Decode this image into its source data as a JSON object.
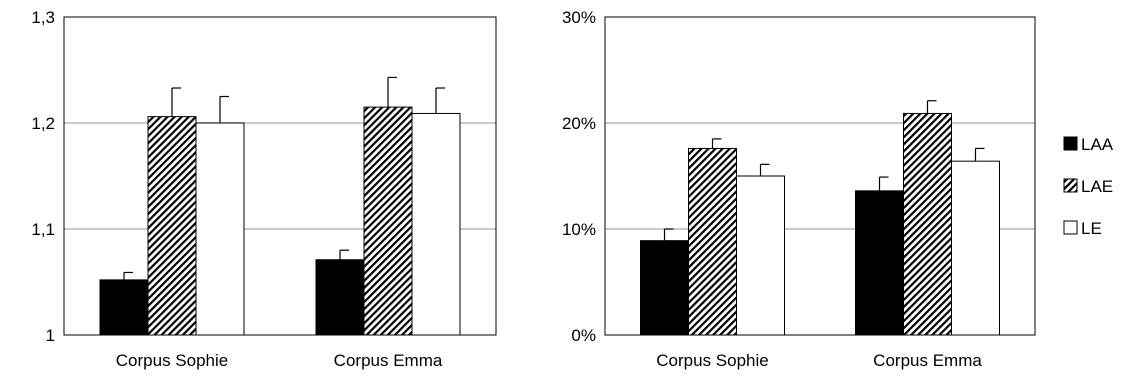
{
  "chart_data": [
    {
      "type": "bar",
      "title": "",
      "xlabel": "",
      "ylabel": "",
      "categories": [
        "Corpus Sophie",
        "Corpus Emma"
      ],
      "ylim": [
        1,
        1.3
      ],
      "yticks": [
        1,
        1.1,
        1.2,
        1.3
      ],
      "ytick_labels": [
        "1",
        "1,1",
        "1,2",
        "1,3"
      ],
      "grid": true,
      "series": [
        {
          "name": "LAA",
          "values": [
            1.052,
            1.071
          ],
          "errors": [
            0.007,
            0.009
          ]
        },
        {
          "name": "LAE",
          "values": [
            1.206,
            1.215
          ],
          "errors": [
            0.027,
            0.028
          ]
        },
        {
          "name": "LE",
          "values": [
            1.2,
            1.209
          ],
          "errors": [
            0.025,
            0.024
          ]
        }
      ]
    },
    {
      "type": "bar",
      "title": "",
      "xlabel": "",
      "ylabel": "",
      "categories": [
        "Corpus Sophie",
        "Corpus Emma"
      ],
      "ylim": [
        0,
        0.3
      ],
      "yticks": [
        0,
        0.1,
        0.2,
        0.3
      ],
      "ytick_labels": [
        "0%",
        "10%",
        "20%",
        "30%"
      ],
      "grid": true,
      "legend": "right",
      "series": [
        {
          "name": "LAA",
          "values": [
            0.089,
            0.136
          ],
          "errors": [
            0.011,
            0.013
          ]
        },
        {
          "name": "LAE",
          "values": [
            0.176,
            0.209
          ],
          "errors": [
            0.009,
            0.012
          ]
        },
        {
          "name": "LE",
          "values": [
            0.15,
            0.164
          ],
          "errors": [
            0.011,
            0.012
          ]
        }
      ]
    }
  ],
  "series_styles": {
    "LAA": {
      "fill": "#000000"
    },
    "LAE": {
      "fill": "hatch"
    },
    "LE": {
      "fill": "#ffffff"
    }
  },
  "colors": {
    "grid": "#a6a6a6",
    "axis": "#000000",
    "hatch_fill": "#000000"
  }
}
